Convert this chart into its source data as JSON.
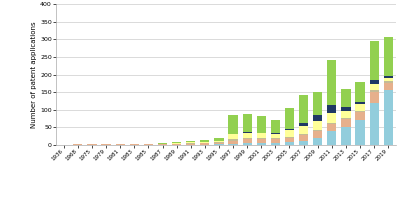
{
  "years": [
    "1936",
    "1968",
    "1975",
    "1979",
    "1981",
    "1983",
    "1985",
    "1987",
    "1989",
    "1991",
    "1993",
    "1995",
    "1997",
    "1999",
    "2001",
    "2003",
    "2005",
    "2007",
    "2009",
    "2011",
    "2013",
    "2015",
    "2017",
    "2019"
  ],
  "China": [
    0,
    0,
    0,
    0,
    0,
    0,
    0,
    0,
    0,
    0,
    0,
    1,
    2,
    4,
    5,
    5,
    8,
    12,
    20,
    38,
    50,
    70,
    120,
    155
  ],
  "USA": [
    0,
    1,
    1,
    1,
    1,
    1,
    1,
    1,
    2,
    3,
    4,
    5,
    10,
    12,
    12,
    10,
    12,
    15,
    18,
    20,
    22,
    22,
    30,
    22
  ],
  "Russia": [
    0,
    1,
    1,
    1,
    1,
    1,
    1,
    1,
    1,
    2,
    2,
    2,
    3,
    3,
    3,
    3,
    3,
    3,
    4,
    4,
    5,
    5,
    5,
    4
  ],
  "Japan": [
    0,
    0,
    0,
    0,
    0,
    0,
    0,
    0,
    1,
    2,
    2,
    3,
    15,
    15,
    12,
    12,
    18,
    22,
    25,
    28,
    18,
    18,
    18,
    10
  ],
  "South Korea": [
    0,
    0,
    0,
    0,
    0,
    0,
    0,
    0,
    0,
    0,
    0,
    0,
    1,
    2,
    2,
    2,
    4,
    10,
    18,
    22,
    12,
    8,
    12,
    5
  ],
  "Others": [
    0,
    1,
    1,
    1,
    1,
    1,
    1,
    2,
    5,
    4,
    5,
    8,
    55,
    52,
    48,
    38,
    60,
    80,
    65,
    130,
    52,
    55,
    110,
    110
  ],
  "colors": {
    "China": "#92CDDC",
    "USA": "#E6B08C",
    "Russia": "#C4BC96",
    "Japan": "#FFFF99",
    "South Korea": "#1F3864",
    "Others": "#92D050"
  },
  "ylim": [
    0,
    400
  ],
  "yticks": [
    0,
    50,
    100,
    150,
    200,
    250,
    300,
    350,
    400
  ],
  "ylabel": "Number of patent applications",
  "background_color": "#ffffff"
}
